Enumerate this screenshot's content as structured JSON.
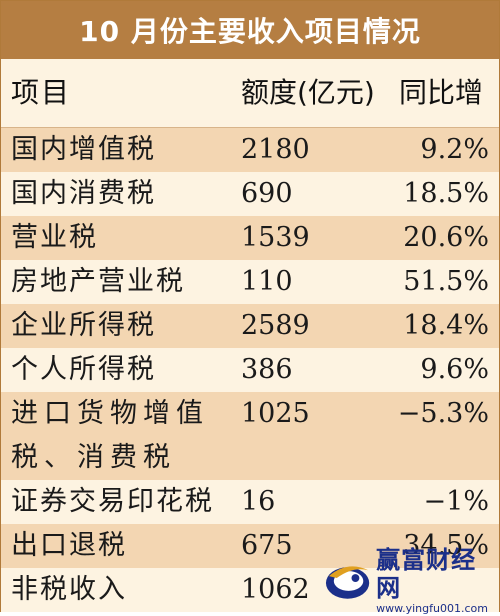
{
  "title": "10 月份主要收入项目情况",
  "table": {
    "headers": [
      "项目",
      "额度(亿元)",
      "同比增"
    ],
    "rows": [
      {
        "name": "国内增值税",
        "amount": "2180",
        "yoy": "9.2%"
      },
      {
        "name": "国内消费税",
        "amount": "690",
        "yoy": "18.5%"
      },
      {
        "name": "营业税",
        "amount": "1539",
        "yoy": "20.6%"
      },
      {
        "name": "房地产营业税",
        "amount": "110",
        "yoy": "51.5%"
      },
      {
        "name": "企业所得税",
        "amount": "2589",
        "yoy": "18.4%"
      },
      {
        "name": "个人所得税",
        "amount": "386",
        "yoy": "9.6%"
      },
      {
        "name": "进口货物增值税、消费税",
        "amount": "1025",
        "yoy": "−5.3%"
      },
      {
        "name": "证券交易印花税",
        "amount": "16",
        "yoy": "−1%"
      },
      {
        "name": "出口退税",
        "amount": "675",
        "yoy": "34.5%"
      },
      {
        "name": "非税收入",
        "amount": "1062",
        "yoy": ""
      }
    ]
  },
  "watermark": {
    "name": "赢富财经网",
    "url": "www.yingfu001.com"
  },
  "colors": {
    "title_bg": "#b57e42",
    "row_shaded": "#f3d6b2",
    "row_plain": "#fdf3e1",
    "watermark": "#1b2f8a"
  }
}
